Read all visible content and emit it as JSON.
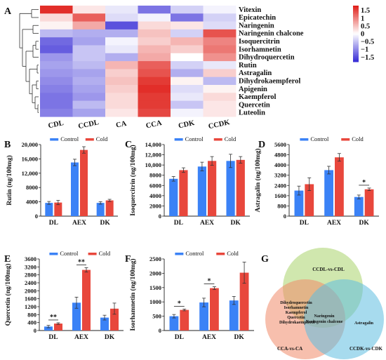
{
  "panel_letters": [
    "A",
    "B",
    "C",
    "D",
    "E",
    "F",
    "G"
  ],
  "chart_data": [
    {
      "type": "heatmap",
      "panel": "A",
      "columns": [
        "CDL",
        "CCDL",
        "CA",
        "CCA",
        "CDK",
        "CCDK"
      ],
      "rows": [
        "Vitexin",
        "Epicatechin",
        "Naringenin",
        "Naringenin chalcone",
        "Isoquercitrin",
        "Isorhamnetin",
        "Dihydroquercetin",
        "Rutin",
        "Astragalin",
        "Dihydrokaempferol",
        "Apigenin",
        "Kaempferol",
        "Quercetin",
        "Luteolin"
      ],
      "values": [
        [
          1.7,
          0.2,
          -0.2,
          -1.2,
          -0.4,
          -0.1
        ],
        [
          0.3,
          1.3,
          -0.3,
          -0.1,
          -1.2,
          -0.4
        ],
        [
          0.1,
          0.7,
          -1.5,
          0.3,
          0.2,
          -0.3
        ],
        [
          -0.6,
          -0.7,
          -0.7,
          0.5,
          -0.4,
          1.4
        ],
        [
          -1.3,
          -0.8,
          -0.1,
          0.4,
          0.6,
          1.0
        ],
        [
          -1.4,
          -0.5,
          -0.2,
          0.6,
          0.4,
          1.1
        ],
        [
          -0.9,
          -0.5,
          -0.7,
          0.7,
          0.0,
          0.9
        ],
        [
          -0.8,
          -0.6,
          0.6,
          1.3,
          -0.4,
          -0.2
        ],
        [
          -0.9,
          -0.8,
          0.4,
          1.4,
          -0.7,
          0.4
        ],
        [
          -1.0,
          -0.7,
          0.5,
          1.6,
          0.1,
          -0.6
        ],
        [
          -1.1,
          -0.8,
          0.4,
          1.7,
          -0.3,
          0.1
        ],
        [
          -1.2,
          -0.9,
          0.3,
          1.6,
          -0.2,
          0.3
        ],
        [
          -1.2,
          -0.6,
          0.3,
          1.6,
          -0.5,
          0.2
        ],
        [
          -1.1,
          -0.8,
          0.2,
          1.5,
          -0.1,
          0.2
        ]
      ],
      "scale_ticks": [
        "1.5",
        "1",
        "0.5",
        "0",
        "−0.5",
        "−1",
        "−1.5"
      ],
      "scale_values": [
        1.5,
        1,
        0.5,
        0,
        -0.5,
        -1,
        -1.5
      ],
      "scale_range": [
        -1.8,
        1.8
      ],
      "colors": {
        "low": "#3a2fd6",
        "mid": "#ffffff",
        "high": "#e0221c"
      }
    },
    {
      "type": "bar",
      "panel": "B",
      "categories": [
        "DL",
        "AEX",
        "DK"
      ],
      "series": [
        {
          "name": "Control",
          "values": [
            3700,
            15000,
            3700
          ],
          "errors": [
            400,
            900,
            350
          ],
          "color": "#3b82f6"
        },
        {
          "name": "Cold",
          "values": [
            3800,
            18500,
            4400
          ],
          "errors": [
            600,
            900,
            300
          ],
          "color": "#e8473c"
        }
      ],
      "ylabel": "Rutin (ng/100mg)",
      "ylim": [
        0,
        20000
      ],
      "yticks": [
        0,
        4000,
        8000,
        12000,
        16000,
        20000
      ],
      "ytick_labels": [
        "0",
        "4000",
        "8000",
        "12,000",
        "16,000",
        "20,000"
      ],
      "significance": []
    },
    {
      "type": "bar",
      "panel": "C",
      "categories": [
        "DL",
        "AEX",
        "DK"
      ],
      "series": [
        {
          "name": "Control",
          "values": [
            7300,
            9700,
            10800
          ],
          "errors": [
            450,
            850,
            1300
          ],
          "color": "#3b82f6"
        },
        {
          "name": "Cold",
          "values": [
            9000,
            10800,
            11000
          ],
          "errors": [
            450,
            850,
            650
          ],
          "color": "#e8473c"
        }
      ],
      "ylabel": "Isoquercitrin (ng/100mg)",
      "ylim": [
        0,
        14000
      ],
      "yticks": [
        0,
        2000,
        4000,
        6000,
        8000,
        10000,
        12000,
        14000
      ],
      "ytick_labels": [
        "0",
        "2000",
        "4000",
        "6000",
        "8000",
        "10,000",
        "12,000",
        "14,000"
      ],
      "significance": []
    },
    {
      "type": "bar",
      "panel": "D",
      "categories": [
        "DL",
        "AEX",
        "DK"
      ],
      "series": [
        {
          "name": "Control",
          "values": [
            2000,
            3600,
            1500
          ],
          "errors": [
            350,
            300,
            150
          ],
          "color": "#3b82f6"
        },
        {
          "name": "Cold",
          "values": [
            2500,
            4600,
            2100
          ],
          "errors": [
            500,
            300,
            100
          ],
          "color": "#e8473c"
        }
      ],
      "ylabel": "Astragalin (ng/100mg)",
      "ylim": [
        0,
        5600
      ],
      "yticks": [
        0,
        800,
        1600,
        2400,
        3200,
        4000,
        4800,
        5600
      ],
      "ytick_labels": [
        "0",
        "800",
        "1600",
        "2400",
        "3200",
        "4000",
        "4800",
        "5600"
      ],
      "significance": [
        {
          "category": "DK",
          "label": "*"
        }
      ]
    },
    {
      "type": "bar",
      "panel": "E",
      "categories": [
        "DL",
        "AEX",
        "DK"
      ],
      "series": [
        {
          "name": "Control",
          "values": [
            200,
            1400,
            650
          ],
          "errors": [
            60,
            280,
            120
          ],
          "color": "#3b82f6"
        },
        {
          "name": "Cold",
          "values": [
            350,
            3050,
            1100
          ],
          "errors": [
            40,
            110,
            280
          ],
          "color": "#e8473c"
        }
      ],
      "ylabel": "Quercetin (ng/100mg)",
      "ylim": [
        0,
        3600
      ],
      "yticks": [
        0,
        400,
        800,
        1200,
        1600,
        2000,
        2400,
        2800,
        3200,
        3600
      ],
      "ytick_labels": [
        "0",
        "400",
        "800",
        "1200",
        "1600",
        "2000",
        "2400",
        "2800",
        "3200",
        "3600"
      ],
      "significance": [
        {
          "category": "DL",
          "label": "**"
        },
        {
          "category": "AEX",
          "label": "**"
        }
      ]
    },
    {
      "type": "bar",
      "panel": "F",
      "categories": [
        "DL",
        "AEX",
        "DK"
      ],
      "series": [
        {
          "name": "Control",
          "values": [
            500,
            980,
            1050
          ],
          "errors": [
            60,
            150,
            140
          ],
          "color": "#3b82f6"
        },
        {
          "name": "Cold",
          "values": [
            720,
            1480,
            2020
          ],
          "errors": [
            30,
            50,
            370
          ],
          "color": "#e8473c"
        }
      ],
      "ylabel": "Isorhamnetin (ng/100mg)",
      "ylim": [
        0,
        2500
      ],
      "yticks": [
        0,
        500,
        1000,
        1500,
        2000,
        2500
      ],
      "ytick_labels": [
        "0",
        "500",
        "1000",
        "1500",
        "2000",
        "2500"
      ],
      "significance": [
        {
          "category": "DL",
          "label": "*"
        },
        {
          "category": "AEX",
          "label": "*"
        }
      ]
    }
  ],
  "venn": {
    "sets": [
      {
        "name": "CCDL-vs-CDL",
        "color": "#a9d46b"
      },
      {
        "name": "CCA-vs-CA",
        "color": "#f08a6a"
      },
      {
        "name": "CCDK-vs-CDK",
        "color": "#5fbde0"
      }
    ],
    "regions": {
      "top_left": [
        "Dihydroquercetin",
        "Isorhamnetin",
        "Kaempferol",
        "Quercetin"
      ],
      "center": [
        "Naringenin",
        "Naringenin chalcone"
      ],
      "left_only": [
        "Dihydrokaempferol"
      ],
      "right_only": [
        "Astragalin"
      ]
    }
  }
}
